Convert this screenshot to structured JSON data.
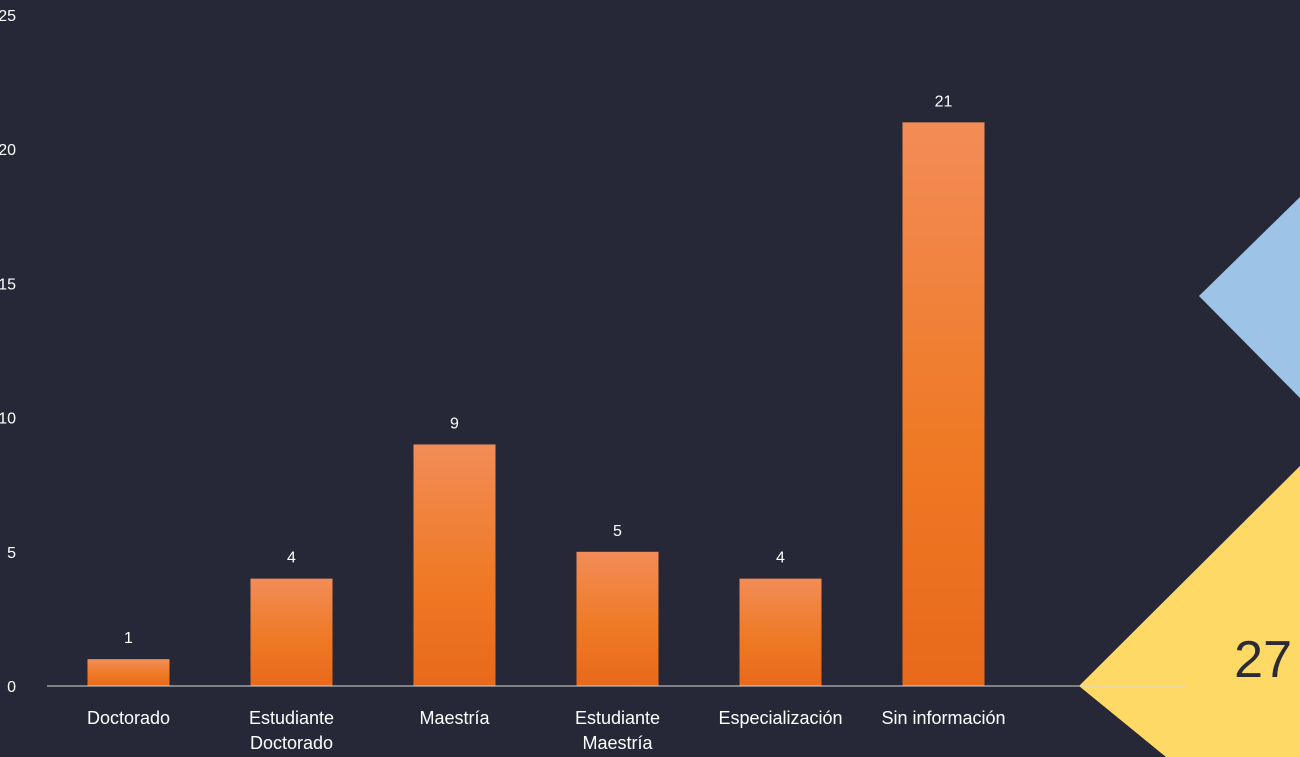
{
  "slide": {
    "page_number": "27",
    "accent_colors": {
      "blue": "#9dc3e6",
      "yellow": "#ffd966",
      "bar": "#ee7a2c"
    }
  },
  "chart_data": {
    "type": "bar",
    "title": "",
    "xlabel": "",
    "ylabel": "",
    "categories": [
      [
        "Doctorado"
      ],
      [
        "Estudiante",
        "Doctorado"
      ],
      [
        "Maestría"
      ],
      [
        "Estudiante",
        "Maestría"
      ],
      [
        "Especialización"
      ],
      [
        "Sin información"
      ]
    ],
    "values": [
      1,
      4,
      9,
      5,
      4,
      21
    ],
    "data_labels": [
      "1",
      "4",
      "9",
      "5",
      "4",
      "21"
    ],
    "ylim": [
      0,
      25
    ],
    "yticks": [
      0,
      5,
      10,
      15,
      20,
      25
    ],
    "ytick_labels": [
      "0",
      "5",
      "10",
      "15",
      "20",
      "25"
    ],
    "grid": false,
    "legend": "none"
  }
}
